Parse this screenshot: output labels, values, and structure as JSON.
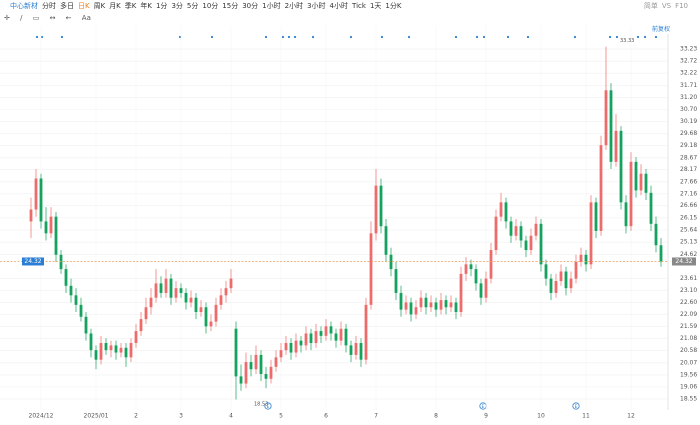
{
  "toolbar": {
    "symbol": "中心新材",
    "periods": [
      "分时",
      "多日",
      "日K",
      "周K",
      "月K",
      "季K",
      "年K",
      "1分",
      "3分",
      "5分",
      "10分",
      "15分",
      "30分",
      "1小时",
      "2小时",
      "3小时",
      "4小时",
      "Tick",
      "1天",
      "1分K"
    ],
    "active": 2,
    "menu": "简单",
    "right": [
      "VS",
      "F10"
    ],
    "text_tool": "Aa"
  },
  "adjust_button": "前复权",
  "event_marker": "E",
  "chart_data": {
    "type": "candlestick",
    "up_color": "#ee6b6b",
    "down_color": "#14a25e",
    "grid": true,
    "ylim": [
      18.09,
      33.61
    ],
    "yticks": [
      18.55,
      19.06,
      19.56,
      20.07,
      20.58,
      21.08,
      21.59,
      22.09,
      {
        "value": 22.6,
        "label": "22.60"
      },
      {
        "value": 23.1,
        "label": "23.10"
      },
      23.61,
      24.62,
      25.13,
      25.64,
      26.15,
      26.66,
      27.16,
      27.66,
      28.17,
      28.67,
      29.18,
      29.68,
      30.19,
      {
        "value": 30.7,
        "label": "30.70"
      },
      {
        "value": 31.2,
        "label": "31.20"
      },
      31.71,
      32.22,
      32.72,
      33.23
    ],
    "xlim": [
      -1.5,
      127.5
    ],
    "xticks": [
      {
        "value": 2,
        "label": "2024/12"
      },
      {
        "value": 13,
        "label": "2025/01"
      },
      {
        "value": 21,
        "label": "2"
      },
      {
        "value": 30,
        "label": "3"
      },
      {
        "value": 40,
        "label": "4"
      },
      {
        "value": 50,
        "label": "5"
      },
      {
        "value": 59,
        "label": "6"
      },
      {
        "value": 69,
        "label": "7"
      },
      {
        "value": 81,
        "label": "8"
      },
      {
        "value": 91,
        "label": "9"
      },
      {
        "value": 102,
        "label": "10"
      },
      {
        "value": 111,
        "label": "11"
      },
      {
        "value": 120,
        "label": "12"
      }
    ],
    "last_price": 24.32,
    "max_price": 33.33,
    "max_index": 115,
    "min_price": 18.53,
    "min_index": 41,
    "ohlc": [
      [
        26.0,
        27.0,
        25.3,
        26.5
      ],
      [
        26.5,
        28.2,
        26.2,
        27.8
      ],
      [
        27.8,
        28.0,
        25.7,
        26.0
      ],
      [
        26.0,
        26.6,
        25.2,
        25.5
      ],
      [
        25.5,
        26.6,
        25.3,
        26.2
      ],
      [
        26.2,
        26.4,
        24.3,
        24.6
      ],
      [
        24.6,
        24.8,
        23.8,
        24.0
      ],
      [
        24.0,
        24.2,
        23.0,
        23.3
      ],
      [
        23.3,
        23.6,
        22.6,
        22.9
      ],
      [
        22.9,
        23.2,
        22.2,
        22.5
      ],
      [
        22.5,
        22.8,
        21.8,
        22.0
      ],
      [
        22.0,
        22.2,
        21.0,
        21.3
      ],
      [
        21.3,
        21.5,
        20.3,
        20.6
      ],
      [
        20.6,
        20.8,
        19.8,
        20.2
      ],
      [
        20.2,
        21.2,
        20.0,
        20.9
      ],
      [
        20.9,
        21.1,
        20.4,
        20.6
      ],
      [
        20.6,
        21.0,
        20.3,
        20.8
      ],
      [
        20.8,
        21.0,
        20.2,
        20.5
      ],
      [
        20.5,
        20.9,
        20.3,
        20.7
      ],
      [
        20.7,
        20.9,
        19.9,
        20.3
      ],
      [
        20.3,
        21.1,
        20.1,
        20.9
      ],
      [
        20.9,
        21.7,
        20.7,
        21.4
      ],
      [
        21.4,
        22.2,
        21.2,
        21.9
      ],
      [
        21.9,
        22.8,
        21.7,
        22.4
      ],
      [
        22.4,
        23.2,
        22.1,
        22.8
      ],
      [
        22.8,
        24.0,
        22.6,
        23.4
      ],
      [
        23.4,
        23.7,
        22.8,
        23.0
      ],
      [
        23.0,
        24.0,
        22.8,
        23.6
      ],
      [
        23.6,
        23.8,
        22.5,
        22.8
      ],
      [
        22.8,
        23.5,
        22.6,
        23.2
      ],
      [
        23.2,
        23.4,
        22.8,
        23.0
      ],
      [
        23.0,
        23.2,
        22.3,
        22.6
      ],
      [
        22.6,
        23.1,
        22.4,
        22.8
      ],
      [
        22.8,
        23.0,
        21.9,
        22.2
      ],
      [
        22.2,
        22.7,
        22.0,
        22.4
      ],
      [
        22.4,
        22.6,
        21.3,
        21.6
      ],
      [
        21.6,
        22.1,
        21.4,
        21.8
      ],
      [
        21.8,
        22.8,
        21.6,
        22.5
      ],
      [
        22.5,
        23.2,
        22.3,
        22.9
      ],
      [
        22.9,
        23.5,
        22.6,
        23.2
      ],
      [
        23.2,
        24.0,
        23.0,
        23.6
      ],
      [
        21.5,
        21.8,
        18.53,
        19.5
      ],
      [
        19.5,
        20.0,
        18.9,
        19.2
      ],
      [
        19.2,
        20.5,
        19.0,
        20.1
      ],
      [
        20.1,
        20.4,
        19.5,
        19.8
      ],
      [
        19.8,
        20.8,
        19.6,
        20.4
      ],
      [
        20.4,
        20.6,
        19.3,
        19.6
      ],
      [
        19.6,
        19.9,
        19.0,
        19.4
      ],
      [
        19.4,
        20.2,
        19.2,
        19.9
      ],
      [
        19.9,
        20.6,
        19.7,
        20.3
      ],
      [
        20.3,
        20.9,
        20.1,
        20.6
      ],
      [
        20.6,
        21.2,
        20.4,
        20.9
      ],
      [
        20.9,
        21.1,
        20.2,
        20.5
      ],
      [
        20.5,
        21.3,
        20.3,
        21.0
      ],
      [
        21.0,
        21.2,
        20.5,
        20.8
      ],
      [
        20.8,
        21.6,
        20.6,
        21.3
      ],
      [
        21.3,
        21.5,
        20.6,
        20.9
      ],
      [
        20.9,
        21.7,
        20.7,
        21.4
      ],
      [
        21.4,
        21.6,
        20.9,
        21.2
      ],
      [
        21.2,
        21.9,
        21.0,
        21.6
      ],
      [
        21.6,
        21.8,
        21.0,
        21.3
      ],
      [
        21.3,
        21.5,
        20.7,
        21.0
      ],
      [
        21.0,
        21.8,
        20.8,
        21.5
      ],
      [
        21.5,
        21.7,
        20.5,
        20.8
      ],
      [
        20.8,
        21.0,
        20.1,
        20.4
      ],
      [
        20.4,
        21.2,
        20.2,
        20.9
      ],
      [
        20.9,
        21.1,
        19.9,
        20.2
      ],
      [
        20.2,
        22.8,
        20.0,
        22.5
      ],
      [
        22.5,
        26.0,
        22.3,
        25.5
      ],
      [
        25.5,
        28.2,
        25.2,
        27.5
      ],
      [
        27.5,
        27.8,
        25.5,
        25.8
      ],
      [
        25.8,
        26.1,
        24.3,
        24.6
      ],
      [
        24.6,
        24.9,
        23.7,
        24.0
      ],
      [
        24.0,
        24.3,
        22.7,
        23.0
      ],
      [
        23.0,
        23.3,
        22.0,
        22.3
      ],
      [
        22.3,
        22.9,
        22.1,
        22.6
      ],
      [
        22.6,
        22.8,
        21.8,
        22.1
      ],
      [
        22.1,
        22.7,
        21.9,
        22.4
      ],
      [
        22.4,
        23.1,
        22.2,
        22.8
      ],
      [
        22.8,
        23.0,
        22.1,
        22.4
      ],
      [
        22.4,
        22.9,
        22.2,
        22.6
      ],
      [
        22.6,
        22.8,
        22.0,
        22.3
      ],
      [
        22.3,
        23.0,
        22.1,
        22.7
      ],
      [
        22.7,
        22.9,
        22.1,
        22.4
      ],
      [
        22.4,
        22.9,
        22.2,
        22.6
      ],
      [
        22.6,
        22.8,
        21.9,
        22.2
      ],
      [
        22.2,
        24.1,
        22.0,
        23.8
      ],
      [
        23.8,
        24.5,
        23.5,
        24.2
      ],
      [
        24.2,
        24.4,
        23.7,
        24.0
      ],
      [
        24.0,
        24.2,
        23.1,
        23.4
      ],
      [
        23.4,
        23.6,
        22.5,
        22.8
      ],
      [
        22.8,
        23.9,
        22.6,
        23.6
      ],
      [
        23.6,
        25.1,
        23.4,
        24.8
      ],
      [
        24.8,
        26.5,
        24.6,
        26.2
      ],
      [
        26.2,
        27.2,
        26.0,
        26.8
      ],
      [
        26.8,
        27.0,
        25.7,
        26.0
      ],
      [
        26.0,
        26.2,
        25.1,
        25.4
      ],
      [
        25.4,
        26.1,
        25.2,
        25.8
      ],
      [
        25.8,
        26.0,
        24.9,
        25.2
      ],
      [
        25.2,
        25.4,
        24.5,
        24.8
      ],
      [
        24.8,
        25.7,
        24.6,
        25.4
      ],
      [
        25.4,
        26.2,
        25.2,
        25.9
      ],
      [
        25.9,
        26.1,
        23.9,
        24.2
      ],
      [
        24.2,
        24.4,
        23.3,
        23.6
      ],
      [
        23.6,
        23.8,
        22.7,
        23.0
      ],
      [
        23.0,
        23.8,
        22.8,
        23.5
      ],
      [
        23.5,
        24.2,
        23.3,
        23.9
      ],
      [
        23.9,
        24.1,
        22.9,
        23.2
      ],
      [
        23.2,
        23.9,
        23.0,
        23.6
      ],
      [
        23.6,
        24.6,
        23.4,
        24.3
      ],
      [
        24.3,
        24.9,
        24.1,
        24.6
      ],
      [
        24.6,
        24.8,
        23.9,
        24.2
      ],
      [
        24.2,
        27.1,
        24.0,
        26.8
      ],
      [
        26.8,
        27.0,
        25.3,
        25.6
      ],
      [
        25.6,
        29.6,
        25.4,
        29.2
      ],
      [
        29.2,
        33.33,
        29.0,
        31.5
      ],
      [
        31.5,
        31.8,
        28.2,
        28.5
      ],
      [
        28.5,
        30.5,
        28.3,
        29.8
      ],
      [
        29.8,
        30.0,
        26.5,
        26.8
      ],
      [
        26.8,
        27.1,
        25.5,
        25.8
      ],
      [
        25.8,
        28.9,
        25.6,
        28.5
      ],
      [
        28.5,
        28.7,
        27.0,
        27.3
      ],
      [
        27.3,
        28.4,
        27.1,
        28.0
      ],
      [
        28.0,
        28.2,
        26.9,
        27.2
      ],
      [
        27.2,
        27.5,
        25.6,
        25.9
      ],
      [
        25.9,
        26.2,
        24.7,
        25.0
      ],
      [
        25.0,
        25.3,
        24.1,
        24.32
      ]
    ]
  }
}
